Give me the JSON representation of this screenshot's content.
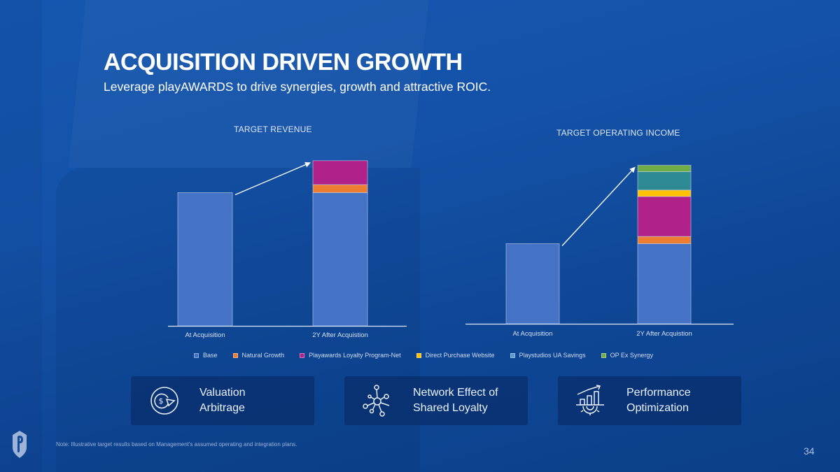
{
  "slide": {
    "title": "ACQUISITION DRIVEN GROWTH",
    "subtitle": "Leverage playAWARDS to drive synergies, growth and attractive ROIC.",
    "note": "Note: Illustrative target results based on Management's assumed operating and integration plans.",
    "page_number": "34",
    "logo_icon": "playstudios-shield-logo"
  },
  "legend": [
    {
      "name": "Base",
      "color": "#4472c4"
    },
    {
      "name": "Natural Growth",
      "color": "#ed7d31"
    },
    {
      "name": "Playawards Loyalty Program-Net",
      "color": "#b0228a"
    },
    {
      "name": "Direct Purchase Website",
      "color": "#ffc000"
    },
    {
      "name": "Playstudios UA Savings",
      "color": "#5b9bd5"
    },
    {
      "name": "OP Ex Synergy",
      "color": "#70ad47"
    }
  ],
  "segment_colors": {
    "Base": "#4472c4",
    "Natural Growth": "#ed7d31",
    "Playawards Loyalty Program-Net": "#b0228a",
    "Direct Purchase Website": "#ffc000",
    "Playstudios UA Savings": "#2e8b94",
    "OP Ex Synergy": "#70ad47"
  },
  "chart_data": [
    {
      "type": "bar",
      "stacked": true,
      "title": "TARGET REVENUE",
      "categories": [
        "At Acquisition",
        "2Y After Acquistion"
      ],
      "xlabel": "",
      "ylabel": "",
      "units": "illustrative index (At Acquisition = 100)",
      "ylim": [
        0,
        130
      ],
      "grid": false,
      "legend_position": "bottom",
      "annotations": [
        "arrow from At Acquisition bar top to 2Y After Acquistion bar top"
      ],
      "series": [
        {
          "name": "Base",
          "values": [
            100,
            100
          ]
        },
        {
          "name": "Natural Growth",
          "values": [
            0,
            6
          ]
        },
        {
          "name": "Playawards Loyalty Program-Net",
          "values": [
            0,
            18
          ]
        }
      ]
    },
    {
      "type": "bar",
      "stacked": true,
      "title": "TARGET OPERATING INCOME",
      "categories": [
        "At Acquisition",
        "2Y After Acquistion"
      ],
      "xlabel": "",
      "ylabel": "",
      "units": "illustrative index (At Acquisition = 100)",
      "ylim": [
        0,
        200
      ],
      "grid": false,
      "legend_position": "bottom",
      "annotations": [
        "arrow from At Acquisition bar top to 2Y After Acquistion bar top"
      ],
      "series": [
        {
          "name": "Base",
          "values": [
            100,
            100
          ]
        },
        {
          "name": "Natural Growth",
          "values": [
            0,
            9
          ]
        },
        {
          "name": "Playawards Loyalty Program-Net",
          "values": [
            0,
            50
          ]
        },
        {
          "name": "Direct Purchase Website",
          "values": [
            0,
            8
          ]
        },
        {
          "name": "Playstudios UA Savings",
          "values": [
            0,
            23
          ]
        },
        {
          "name": "OP Ex Synergy",
          "values": [
            0,
            8
          ]
        }
      ]
    }
  ],
  "cards": [
    {
      "line1": "Valuation",
      "line2": "Arbitrage",
      "icon": "dollar-pie-icon"
    },
    {
      "line1": "Network Effect of",
      "line2": "Shared Loyalty",
      "icon": "network-nodes-icon"
    },
    {
      "line1": "Performance",
      "line2": "Optimization",
      "icon": "chart-gear-icon"
    }
  ]
}
